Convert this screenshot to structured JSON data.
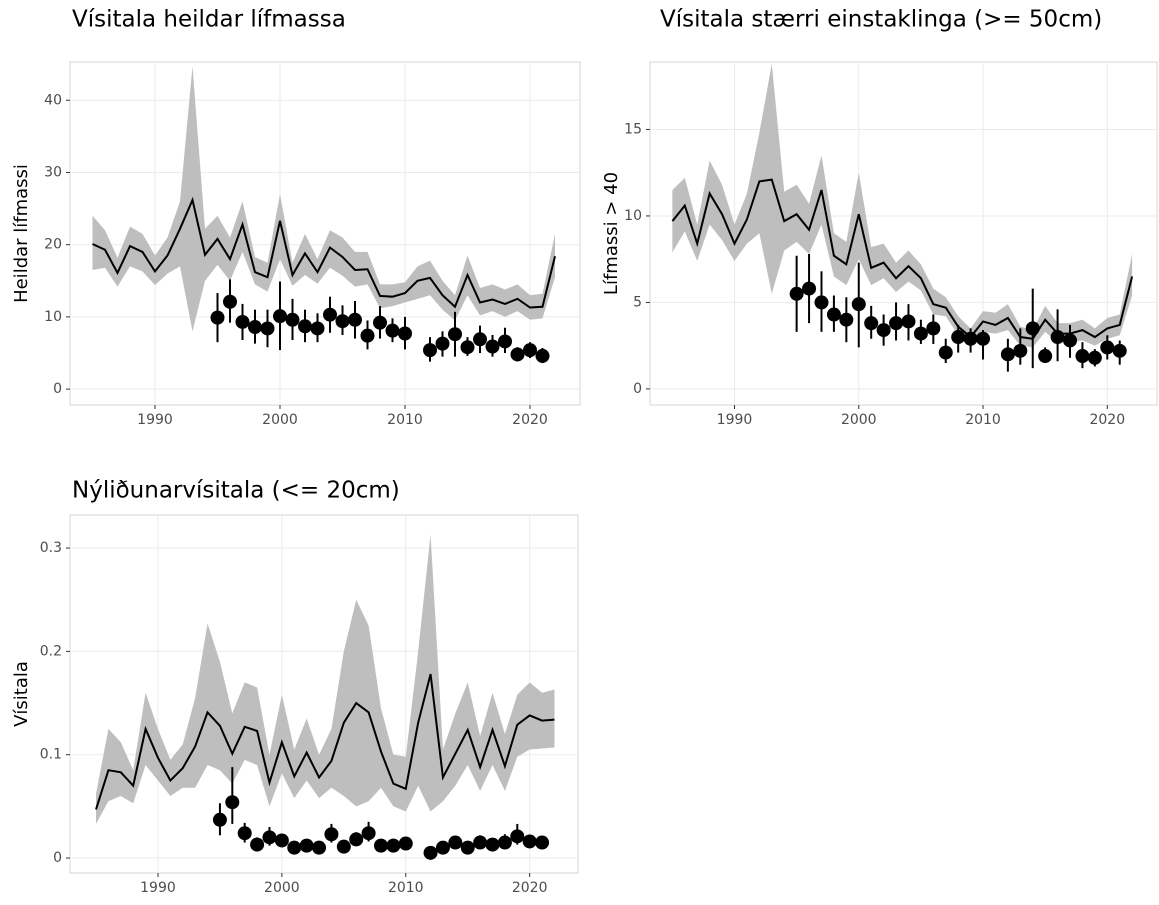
{
  "chart_data": [
    {
      "type": "line",
      "title": "Vísitala heildar lífmassa",
      "y_label": "Heildar lífmassi",
      "x": [
        1985,
        1986,
        1987,
        1988,
        1989,
        1990,
        1991,
        1992,
        1993,
        1994,
        1995,
        1996,
        1997,
        1998,
        1999,
        2000,
        2001,
        2002,
        2003,
        2004,
        2005,
        2006,
        2007,
        2008,
        2009,
        2010,
        2011,
        2012,
        2013,
        2014,
        2015,
        2016,
        2017,
        2018,
        2019,
        2020,
        2021,
        2022
      ],
      "values": [
        20.1,
        19.3,
        16.1,
        19.8,
        19.0,
        16.3,
        18.5,
        22.2,
        26.2,
        18.6,
        20.8,
        18.0,
        22.8,
        16.2,
        15.5,
        23.3,
        15.8,
        18.8,
        16.2,
        19.6,
        18.3,
        16.5,
        16.6,
        12.9,
        12.8,
        13.3,
        15.0,
        15.4,
        13.0,
        11.4,
        15.8,
        12.0,
        12.4,
        11.8,
        12.5,
        11.3,
        11.4,
        18.4
      ],
      "lower": [
        16.5,
        16.8,
        14.2,
        17.0,
        16.3,
        14.4,
        16.0,
        17.0,
        8.0,
        15.0,
        17.2,
        15.0,
        19.0,
        14.5,
        13.5,
        18.0,
        14.3,
        15.8,
        14.6,
        16.8,
        15.7,
        14.2,
        14.5,
        11.2,
        11.5,
        12.0,
        12.5,
        13.0,
        11.0,
        9.5,
        13.0,
        10.2,
        10.8,
        10.0,
        10.8,
        9.6,
        9.8,
        15.5
      ],
      "upper": [
        24.0,
        22.0,
        18.2,
        22.5,
        21.5,
        18.5,
        21.0,
        26.0,
        44.7,
        22.2,
        24.0,
        21.0,
        26.0,
        18.3,
        17.5,
        27.0,
        17.5,
        21.5,
        18.0,
        22.0,
        21.0,
        19.0,
        19.0,
        14.5,
        14.5,
        14.8,
        17.0,
        17.8,
        15.0,
        13.0,
        18.5,
        14.0,
        14.5,
        13.8,
        14.5,
        13.0,
        13.2,
        21.5
      ],
      "points": {
        "x": [
          1995,
          1996,
          1997,
          1998,
          1999,
          2000,
          2001,
          2002,
          2003,
          2004,
          2005,
          2006,
          2007,
          2008,
          2009,
          2010,
          2012,
          2013,
          2014,
          2015,
          2016,
          2017,
          2018,
          2019,
          2020,
          2021
        ],
        "values": [
          9.9,
          12.1,
          9.3,
          8.6,
          8.4,
          10.1,
          9.6,
          8.7,
          8.4,
          10.3,
          9.4,
          9.6,
          7.4,
          9.2,
          8.1,
          7.7,
          5.4,
          6.3,
          7.6,
          5.8,
          6.9,
          5.9,
          6.6,
          4.8,
          5.4,
          4.6
        ],
        "lower": [
          6.5,
          9.2,
          6.8,
          6.3,
          5.8,
          5.4,
          6.8,
          6.5,
          6.5,
          7.8,
          7.5,
          7.0,
          5.5,
          7.0,
          6.5,
          5.5,
          3.8,
          4.5,
          4.5,
          4.6,
          5.0,
          4.5,
          5.0,
          4.0,
          4.3,
          3.6
        ],
        "upper": [
          13.3,
          15.2,
          11.8,
          11.0,
          11.0,
          14.9,
          12.5,
          11.0,
          10.5,
          12.8,
          11.6,
          12.2,
          9.5,
          11.5,
          9.8,
          10.0,
          7.2,
          8.0,
          10.7,
          7.2,
          8.8,
          7.5,
          8.5,
          5.8,
          6.5,
          5.7
        ]
      },
      "color": "#000000",
      "band_color": "#bebebe",
      "grid": true,
      "xlim": [
        1983.2,
        2024.0
      ],
      "xticks": [
        1990,
        2000,
        2010,
        2020
      ],
      "ylim": [
        -2.2,
        45.3
      ],
      "yticks": [
        0,
        10,
        20,
        30,
        40
      ]
    },
    {
      "type": "line",
      "title": "Vísitala stærri einstaklinga (>= 50cm)",
      "y_label": "Lífmassi > 40",
      "x": [
        1985,
        1986,
        1987,
        1988,
        1989,
        1990,
        1991,
        1992,
        1993,
        1994,
        1995,
        1996,
        1997,
        1998,
        1999,
        2000,
        2001,
        2002,
        2003,
        2004,
        2005,
        2006,
        2007,
        2008,
        2009,
        2010,
        2011,
        2012,
        2013,
        2014,
        2015,
        2016,
        2017,
        2018,
        2019,
        2020,
        2021,
        2022
      ],
      "values": [
        9.7,
        10.6,
        8.4,
        11.3,
        10.1,
        8.4,
        9.8,
        12.0,
        12.1,
        9.7,
        10.1,
        9.2,
        11.5,
        7.7,
        7.2,
        10.1,
        7.0,
        7.3,
        6.4,
        7.1,
        6.4,
        4.9,
        4.7,
        3.6,
        3.0,
        3.9,
        3.7,
        4.1,
        3.0,
        2.9,
        4.0,
        3.2,
        3.2,
        3.4,
        3.0,
        3.5,
        3.7,
        6.5
      ],
      "lower": [
        7.9,
        9.1,
        7.4,
        9.5,
        8.6,
        7.4,
        8.4,
        9.0,
        5.5,
        8.0,
        8.5,
        7.8,
        9.5,
        6.5,
        6.0,
        7.5,
        6.0,
        6.4,
        5.6,
        6.2,
        5.7,
        4.3,
        4.2,
        3.1,
        2.6,
        3.3,
        3.2,
        3.4,
        2.5,
        2.4,
        3.3,
        2.7,
        2.7,
        2.8,
        2.5,
        2.9,
        3.1,
        5.4
      ],
      "upper": [
        11.5,
        12.2,
        9.5,
        13.2,
        11.8,
        9.5,
        11.3,
        14.8,
        18.8,
        11.4,
        11.8,
        10.7,
        13.5,
        9.0,
        8.5,
        12.5,
        8.2,
        8.4,
        7.3,
        8.0,
        7.2,
        5.8,
        5.3,
        4.2,
        3.5,
        4.5,
        4.4,
        4.9,
        3.6,
        3.4,
        4.8,
        3.8,
        3.8,
        4.0,
        3.5,
        4.1,
        4.3,
        7.8
      ],
      "points": {
        "x": [
          1995,
          1996,
          1997,
          1998,
          1999,
          2000,
          2001,
          2002,
          2003,
          2004,
          2005,
          2006,
          2007,
          2008,
          2009,
          2010,
          2012,
          2013,
          2014,
          2015,
          2016,
          2017,
          2018,
          2019,
          2020,
          2021
        ],
        "values": [
          5.5,
          5.8,
          5.0,
          4.3,
          4.0,
          4.9,
          3.8,
          3.4,
          3.8,
          3.9,
          3.2,
          3.5,
          2.1,
          3.0,
          2.9,
          2.9,
          2.0,
          2.2,
          3.5,
          1.9,
          3.0,
          2.8,
          1.9,
          1.8,
          2.4,
          2.2
        ],
        "lower": [
          3.3,
          3.8,
          3.3,
          3.3,
          2.7,
          2.4,
          2.9,
          2.5,
          2.8,
          2.8,
          2.6,
          2.6,
          1.5,
          2.1,
          2.1,
          1.7,
          1.0,
          1.4,
          1.2,
          1.5,
          1.6,
          1.8,
          1.2,
          1.3,
          1.7,
          1.4
        ],
        "upper": [
          7.7,
          7.8,
          6.8,
          5.4,
          5.3,
          7.3,
          4.8,
          4.3,
          5.0,
          4.9,
          4.0,
          4.3,
          2.9,
          3.7,
          3.5,
          3.4,
          2.9,
          3.5,
          5.8,
          2.4,
          4.6,
          3.7,
          2.7,
          2.3,
          3.1,
          2.8
        ]
      },
      "color": "#000000",
      "band_color": "#bebebe",
      "grid": true,
      "xlim": [
        1983.2,
        2024.0
      ],
      "xticks": [
        1990,
        2000,
        2010,
        2020
      ],
      "ylim": [
        -0.93,
        18.9
      ],
      "yticks": [
        0,
        5,
        10,
        15
      ]
    },
    {
      "type": "line",
      "title": "Nýliðunarvísitala (<= 20cm)",
      "y_label": "Vísitala",
      "x": [
        1985,
        1986,
        1987,
        1988,
        1989,
        1990,
        1991,
        1992,
        1993,
        1994,
        1995,
        1996,
        1997,
        1998,
        1999,
        2000,
        2001,
        2002,
        2003,
        2004,
        2005,
        2006,
        2007,
        2008,
        2009,
        2010,
        2011,
        2012,
        2013,
        2014,
        2015,
        2016,
        2017,
        2018,
        2019,
        2020,
        2021,
        2022
      ],
      "values": [
        0.047,
        0.085,
        0.083,
        0.07,
        0.125,
        0.097,
        0.075,
        0.087,
        0.108,
        0.141,
        0.128,
        0.101,
        0.127,
        0.123,
        0.073,
        0.112,
        0.079,
        0.102,
        0.078,
        0.094,
        0.131,
        0.15,
        0.141,
        0.103,
        0.072,
        0.067,
        0.131,
        0.178,
        0.078,
        0.101,
        0.124,
        0.088,
        0.124,
        0.089,
        0.129,
        0.138,
        0.133,
        0.134
      ],
      "lower": [
        0.033,
        0.055,
        0.06,
        0.053,
        0.09,
        0.075,
        0.06,
        0.068,
        0.068,
        0.09,
        0.085,
        0.072,
        0.095,
        0.09,
        0.05,
        0.082,
        0.058,
        0.075,
        0.058,
        0.068,
        0.06,
        0.05,
        0.055,
        0.068,
        0.05,
        0.045,
        0.07,
        0.045,
        0.055,
        0.07,
        0.09,
        0.065,
        0.09,
        0.065,
        0.098,
        0.105,
        0.106,
        0.107
      ],
      "upper": [
        0.062,
        0.125,
        0.112,
        0.085,
        0.16,
        0.125,
        0.095,
        0.11,
        0.155,
        0.227,
        0.19,
        0.14,
        0.17,
        0.165,
        0.1,
        0.158,
        0.105,
        0.135,
        0.1,
        0.125,
        0.2,
        0.25,
        0.225,
        0.145,
        0.1,
        0.098,
        0.2,
        0.313,
        0.105,
        0.14,
        0.17,
        0.118,
        0.16,
        0.12,
        0.158,
        0.17,
        0.16,
        0.163
      ],
      "points": {
        "x": [
          1995,
          1996,
          1997,
          1998,
          1999,
          2000,
          2001,
          2002,
          2003,
          2004,
          2005,
          2006,
          2007,
          2008,
          2009,
          2010,
          2012,
          2013,
          2014,
          2015,
          2016,
          2017,
          2018,
          2019,
          2020,
          2021
        ],
        "values": [
          0.037,
          0.054,
          0.024,
          0.013,
          0.02,
          0.017,
          0.01,
          0.012,
          0.01,
          0.023,
          0.011,
          0.018,
          0.024,
          0.012,
          0.012,
          0.014,
          0.005,
          0.01,
          0.015,
          0.01,
          0.015,
          0.013,
          0.015,
          0.021,
          0.016,
          0.015
        ],
        "lower": [
          0.022,
          0.033,
          0.015,
          0.008,
          0.012,
          0.012,
          0.007,
          0.008,
          0.007,
          0.015,
          0.007,
          0.013,
          0.016,
          0.009,
          0.009,
          0.009,
          0.003,
          0.006,
          0.01,
          0.006,
          0.009,
          0.008,
          0.009,
          0.013,
          0.011,
          0.01
        ],
        "upper": [
          0.053,
          0.088,
          0.034,
          0.02,
          0.03,
          0.022,
          0.014,
          0.016,
          0.013,
          0.033,
          0.015,
          0.025,
          0.035,
          0.016,
          0.015,
          0.018,
          0.008,
          0.015,
          0.02,
          0.015,
          0.022,
          0.019,
          0.023,
          0.033,
          0.022,
          0.021
        ]
      },
      "color": "#000000",
      "band_color": "#bebebe",
      "grid": true,
      "xlim": [
        1982.9,
        2023.9
      ],
      "xticks": [
        1990,
        2000,
        2010,
        2020
      ],
      "ylim": [
        -0.0145,
        0.332
      ],
      "yticks": [
        0.0,
        0.1,
        0.2,
        0.3
      ]
    }
  ]
}
